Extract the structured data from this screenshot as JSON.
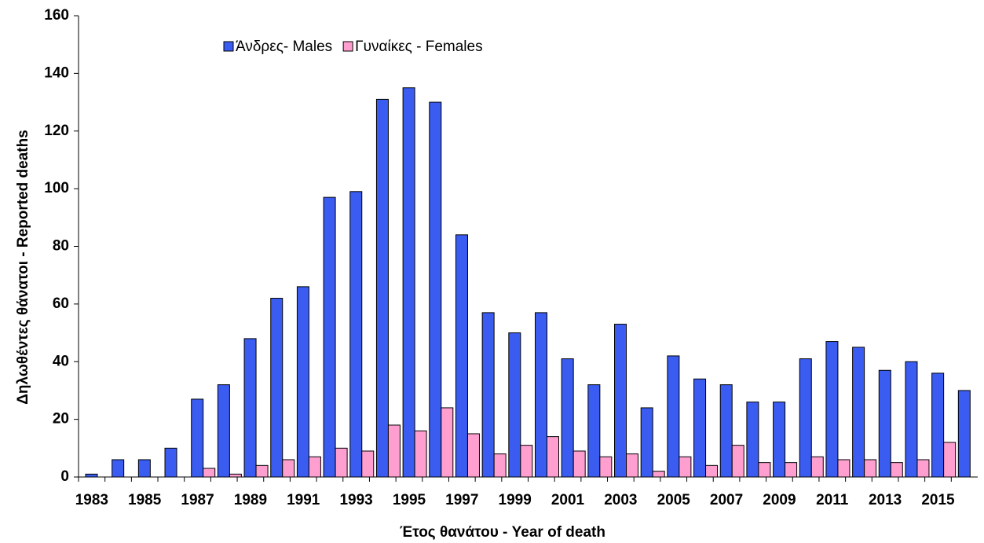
{
  "chart_data": {
    "type": "bar",
    "x_label": "Έτος θανάτου - Year of death",
    "y_label": "Δηλωθέντες θάνατοι - Reported deaths",
    "categories": [
      "1983",
      null,
      "1985",
      null,
      "1987",
      null,
      "1989",
      null,
      "1991",
      null,
      "1993",
      null,
      "1995",
      null,
      "1997",
      null,
      "1999",
      null,
      "2001",
      null,
      "2003",
      null,
      "2005",
      null,
      "2007",
      null,
      "2009",
      null,
      "2011",
      null,
      "2013",
      null,
      "2015",
      null
    ],
    "series": [
      {
        "name": "Άνδρες- Males",
        "color": "#3a5cf0",
        "values": [
          1,
          6,
          6,
          10,
          27,
          32,
          48,
          62,
          66,
          97,
          99,
          131,
          135,
          130,
          84,
          57,
          50,
          57,
          41,
          32,
          53,
          24,
          42,
          34,
          32,
          26,
          26,
          41,
          47,
          45,
          37,
          40,
          36,
          30
        ]
      },
      {
        "name": "Γυναίκες - Females",
        "color": "#ff9fd0",
        "values": [
          0,
          0,
          0,
          0,
          3,
          1,
          4,
          6,
          7,
          10,
          9,
          18,
          16,
          24,
          15,
          8,
          11,
          14,
          9,
          7,
          8,
          2,
          7,
          4,
          11,
          5,
          5,
          7,
          6,
          6,
          5,
          6,
          12,
          0
        ]
      }
    ],
    "ylim": [
      0,
      160
    ],
    "yticks": [
      0,
      20,
      40,
      60,
      80,
      100,
      120,
      140,
      160
    ],
    "grid": false,
    "legend": "top"
  }
}
